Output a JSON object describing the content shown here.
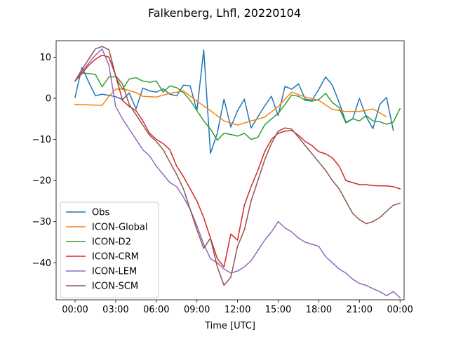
{
  "chart_data": {
    "type": "line",
    "title": "Falkenberg, Lhfl, 20220104",
    "xlabel": "Time [UTC]",
    "ylabel": "",
    "xlim": [
      -1.4,
      24.3
    ],
    "ylim": [
      -49,
      14
    ],
    "xticks": [
      0,
      3,
      6,
      9,
      12,
      15,
      18,
      21,
      24
    ],
    "xtick_labels": [
      "00:00",
      "03:00",
      "06:00",
      "09:00",
      "12:00",
      "15:00",
      "18:00",
      "21:00",
      "00:00"
    ],
    "yticks": [
      -40,
      -30,
      -20,
      -10,
      0,
      10
    ],
    "ytick_labels": [
      "−40",
      "−30",
      "−20",
      "−10",
      "0",
      "10"
    ],
    "legend_position": "lower-left",
    "series": [
      {
        "name": "Obs",
        "color": "#1f77b4",
        "x": [
          0,
          0.5,
          1,
          1.5,
          2,
          2.5,
          3,
          3.5,
          4,
          4.5,
          5,
          5.5,
          6,
          6.5,
          7,
          7.5,
          8,
          8.5,
          9,
          9.5,
          10,
          10.5,
          11,
          11.5,
          12,
          12.5,
          13,
          13.5,
          14,
          14.5,
          15,
          15.5,
          16,
          16.5,
          17,
          17.5,
          18,
          18.5,
          19,
          19.5,
          20,
          20.5,
          21,
          21.5,
          22,
          22.5,
          23,
          23.5
        ],
        "y": [
          0.2,
          7.5,
          4,
          0.6,
          1,
          0.7,
          0.4,
          -0.3,
          1.3,
          -2.6,
          2.5,
          1.8,
          1.5,
          2.3,
          1,
          0.6,
          3.2,
          3,
          -3,
          11.8,
          -13.4,
          -8.5,
          -0.2,
          -7,
          -3,
          -0.2,
          -7.2,
          -4.5,
          -1.9,
          0.5,
          -4.2,
          2.9,
          2.2,
          3.5,
          -0.2,
          -0.5,
          2.2,
          5.2,
          3.2,
          -1,
          -5.8,
          -5,
          0,
          -4.5,
          -7.4,
          -1.5,
          0.2,
          -7.8
        ]
      },
      {
        "name": "ICON-Global",
        "color": "#ff7f0e",
        "x": [
          0,
          1,
          2,
          2.5,
          3,
          3.5,
          4,
          4.5,
          5,
          6,
          7,
          8,
          9,
          10,
          11,
          12,
          13,
          14,
          15,
          15.5,
          16,
          17,
          18,
          19,
          20,
          21,
          22,
          23
        ],
        "y": [
          -1.5,
          -1.6,
          -1.7,
          0.5,
          2.2,
          2.3,
          1.9,
          1.4,
          0.5,
          0.3,
          1.2,
          1.8,
          -0.7,
          -3,
          -5.5,
          -6.5,
          -5.5,
          -4.6,
          -2,
          -0.2,
          1.5,
          0.3,
          -0.5,
          -2.7,
          -3.2,
          -3.2,
          -2.6,
          -4.5
        ]
      },
      {
        "name": "ICON-D2",
        "color": "#2ca02c",
        "x": [
          0,
          0.5,
          1,
          1.5,
          2,
          2.5,
          3,
          3.5,
          4,
          4.5,
          5,
          5.5,
          6,
          6.5,
          7,
          7.5,
          8,
          8.5,
          9,
          9.5,
          10,
          10.5,
          11,
          11.5,
          12,
          12.5,
          13,
          13.5,
          14,
          14.5,
          15,
          15.5,
          16,
          16.5,
          17,
          17.5,
          18,
          18.5,
          19,
          19.5,
          20,
          20.5,
          21,
          21.5,
          22,
          22.5,
          23,
          23.5,
          24
        ],
        "y": [
          4.2,
          6.2,
          6,
          5.8,
          2.8,
          5.2,
          5.2,
          2.2,
          4.7,
          5,
          4.2,
          3.9,
          4.2,
          1.5,
          3,
          2.6,
          1.4,
          -0.5,
          -3,
          -5.5,
          -7.5,
          -10.2,
          -8.5,
          -8.8,
          -9.2,
          -8.5,
          -10,
          -9.5,
          -6.5,
          -5,
          -3.7,
          -1.5,
          0.8,
          0.5,
          -0.5,
          -0.7,
          -0.3,
          1.2,
          -1,
          -2.3,
          -6,
          -5,
          -5.5,
          -4.2,
          -5.5,
          -5.7,
          -6.3,
          -5.8,
          -2.5
        ]
      },
      {
        "name": "ICON-CRM",
        "color": "#d62728",
        "x": [
          0,
          0.5,
          1,
          1.5,
          2,
          2.5,
          3,
          3.5,
          4,
          4.5,
          5,
          5.5,
          6,
          6.5,
          7,
          7.5,
          8,
          8.5,
          9,
          9.5,
          10,
          10.5,
          11,
          11.5,
          12,
          12.5,
          13,
          13.5,
          14,
          14.5,
          15,
          15.5,
          16,
          16.5,
          17,
          17.5,
          18,
          18.5,
          19,
          19.5,
          20,
          20.5,
          21,
          21.5,
          22,
          22.5,
          23,
          23.5,
          24
        ],
        "y": [
          4.2,
          6,
          8,
          9.5,
          10.5,
          10,
          5.5,
          -0.5,
          -2,
          -3,
          -5.5,
          -8.5,
          -10,
          -11,
          -12.5,
          -16.5,
          -19,
          -22,
          -25,
          -29,
          -34,
          -39,
          -41,
          -33,
          -34.5,
          -26,
          -21.5,
          -17.5,
          -13,
          -10,
          -8.5,
          -8,
          -7.8,
          -9,
          -10.5,
          -11.5,
          -13,
          -13.5,
          -14.5,
          -16.5,
          -20,
          -20.5,
          -21,
          -21,
          -21.2,
          -21.3,
          -21.3,
          -21.5,
          -22
        ]
      },
      {
        "name": "ICON-LEM",
        "color": "#9467bd",
        "x": [
          0,
          0.5,
          1,
          1.5,
          2,
          2.5,
          3,
          3.5,
          4,
          4.5,
          5,
          5.5,
          6,
          6.5,
          7,
          7.5,
          8,
          8.5,
          9,
          9.5,
          10,
          10.5,
          11,
          11.5,
          12,
          12.5,
          13,
          13.5,
          14,
          14.5,
          15,
          15.5,
          16,
          16.5,
          17,
          17.5,
          18,
          18.5,
          19,
          19.5,
          20,
          20.5,
          21,
          21.5,
          22,
          22.5,
          23,
          23.5,
          24
        ],
        "y": [
          4.2,
          6.5,
          8.5,
          10.5,
          12,
          8,
          -2,
          -5,
          -7.5,
          -10,
          -12.5,
          -14,
          -16.5,
          -18.5,
          -20.5,
          -21.5,
          -24,
          -27,
          -31,
          -35.5,
          -39,
          -40,
          -41.5,
          -42.5,
          -42,
          -41,
          -39.5,
          -37,
          -34.5,
          -32.5,
          -30,
          -31.5,
          -32.5,
          -34,
          -35,
          -35.5,
          -36,
          -38.5,
          -40,
          -41.5,
          -42.5,
          -44,
          -45,
          -45.5,
          -46.3,
          -47,
          -48,
          -47,
          -48.5
        ]
      },
      {
        "name": "ICON-SCM",
        "color": "#8c564b",
        "x": [
          0,
          0.5,
          1,
          1.5,
          2,
          2.5,
          3,
          3.5,
          4,
          4.5,
          5,
          5.5,
          6,
          6.5,
          7,
          7.5,
          8,
          8.5,
          9,
          9.5,
          10,
          10.5,
          11,
          11.5,
          12,
          12.5,
          13,
          13.5,
          14,
          14.5,
          15,
          15.5,
          16,
          16.5,
          17,
          17.5,
          18,
          18.5,
          19,
          19.5,
          20,
          20.5,
          21,
          21.5,
          22,
          22.5,
          23,
          23.5,
          24
        ],
        "y": [
          4.2,
          7,
          9.5,
          12,
          12.6,
          11.8,
          5.5,
          3.5,
          -1.5,
          -4,
          -6.5,
          -9,
          -10.5,
          -12.5,
          -15.5,
          -18.5,
          -22,
          -27,
          -32,
          -36.5,
          -34,
          -41,
          -45.5,
          -43.5,
          -36,
          -32,
          -25,
          -20,
          -15,
          -11,
          -8,
          -7.2,
          -7.5,
          -9.5,
          -11.5,
          -13.5,
          -15.5,
          -17.5,
          -20,
          -22,
          -25,
          -28,
          -29.5,
          -30.5,
          -30,
          -29,
          -27.5,
          -26,
          -25.5
        ]
      }
    ]
  }
}
